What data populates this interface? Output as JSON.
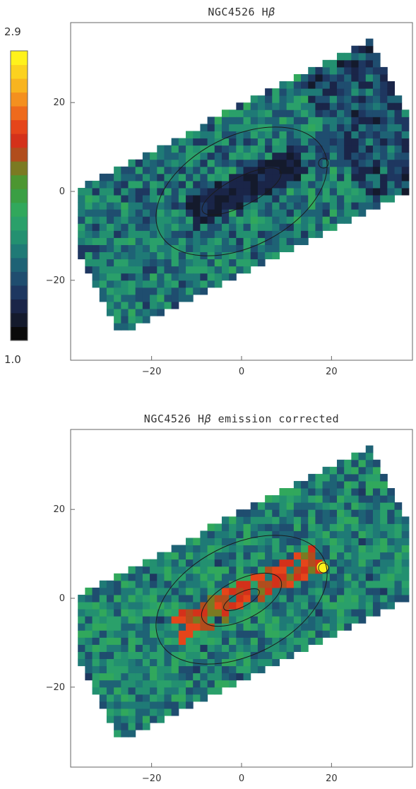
{
  "chart_data": [
    {
      "type": "heatmap",
      "title": "NGC4526 H",
      "title_symbol": "β",
      "title_suffix": "",
      "xlim": [
        -38,
        38
      ],
      "ylim": [
        -38,
        38
      ],
      "xticks": [
        -20,
        0,
        20
      ],
      "yticks": [
        -20,
        0,
        20
      ],
      "colorbar": {
        "min_label": "1.0",
        "max_label": "2.9",
        "min": 1.0,
        "max": 2.9
      },
      "map_description": "Absorption line strength map, mostly green/blue with a dark central bar",
      "features": [
        {
          "x": -2,
          "y": 0,
          "value": 1.1
        },
        {
          "x": 18,
          "y": 7.5,
          "value": 1.9
        }
      ]
    },
    {
      "type": "heatmap",
      "title": "NGC4526 H",
      "title_symbol": "β",
      "title_suffix": " emission corrected",
      "xlim": [
        -38,
        38
      ],
      "ylim": [
        -38,
        38
      ],
      "xticks": [
        -20,
        0,
        20
      ],
      "yticks": [
        -20,
        0,
        20
      ],
      "map_description": "Emission-corrected line strength map with a red central disk and a yellow spot near (18, 7)",
      "features": [
        {
          "x": 0,
          "y": 1,
          "value": 2.3
        },
        {
          "x": 18,
          "y": 7,
          "value": 2.9
        }
      ]
    }
  ],
  "colors": {
    "colormap": [
      "#0a0a0a",
      "#141a2c",
      "#1a2548",
      "#1e3760",
      "#1f4d6f",
      "#1e6275",
      "#1f7a76",
      "#239070",
      "#2aa06a",
      "#31a85c",
      "#3a9f44",
      "#4c9631",
      "#7b7a22",
      "#b14d1d",
      "#d4311a",
      "#e5451a",
      "#ee6a1c",
      "#f4901f",
      "#f8b41f",
      "#fbd21f",
      "#fff21b"
    ]
  }
}
